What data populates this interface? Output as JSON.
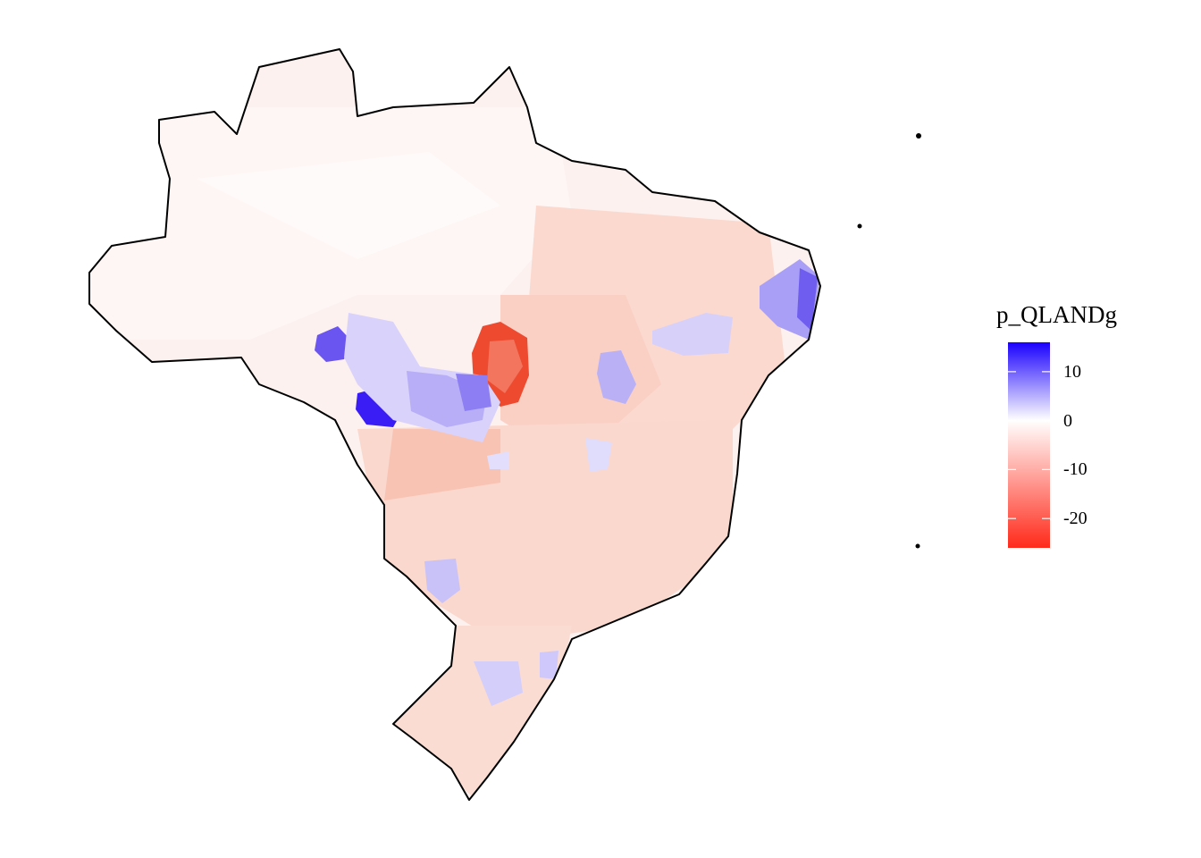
{
  "legend": {
    "title": "p_QLANDg",
    "ticks": [
      {
        "value": 10,
        "label": "10"
      },
      {
        "value": 0,
        "label": "0"
      },
      {
        "value": -10,
        "label": "-10"
      },
      {
        "value": -20,
        "label": "-20"
      }
    ],
    "range": [
      -26,
      16
    ],
    "colors": {
      "high": "#1a00ff",
      "mid": "#ffffff",
      "low": "#ff2a1a"
    }
  },
  "map": {
    "region": "Brazil",
    "fill_default": "#fbeee9",
    "outline_color": "#000000"
  }
}
